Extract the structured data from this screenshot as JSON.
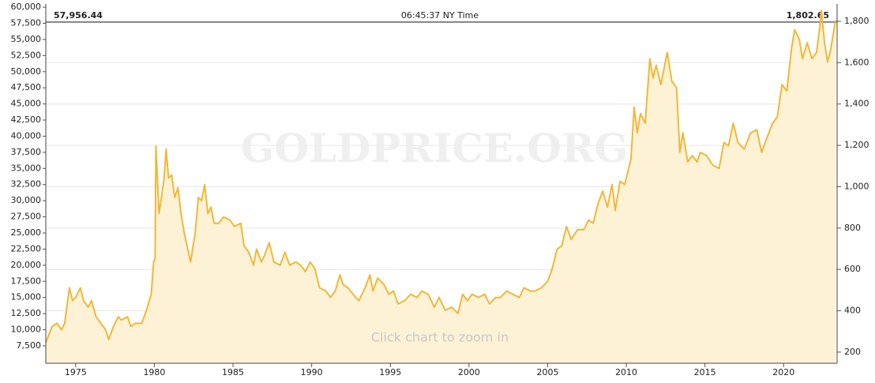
{
  "chart_data": {
    "type": "line",
    "annotations": [
      "57,956.44",
      "06:45:37 NY Time",
      "1,802.65"
    ],
    "watermark": "GOLDPRICE.ORG",
    "note": "Click chart to zoom in",
    "color": "#f0b838",
    "fill_color": "#fdf2d5",
    "grid": true,
    "xlim": [
      1973.1,
      2023.4
    ],
    "xticks": [
      1975,
      1980,
      1985,
      1990,
      1995,
      2000,
      2005,
      2010,
      2015,
      2020
    ],
    "ylim": [
      4800,
      60500
    ],
    "yticks": [
      {
        "value": 7500,
        "label": "7,500"
      },
      {
        "value": 10000,
        "label": "10,000"
      },
      {
        "value": 12500,
        "label": "12,500"
      },
      {
        "value": 15000,
        "label": "15,000"
      },
      {
        "value": 17500,
        "label": "17,500"
      },
      {
        "value": 20000,
        "label": "20,000"
      },
      {
        "value": 22500,
        "label": "22,500"
      },
      {
        "value": 25000,
        "label": "25,000"
      },
      {
        "value": 27500,
        "label": "27,500"
      },
      {
        "value": 30000,
        "label": "30,000"
      },
      {
        "value": 32500,
        "label": "32,500"
      },
      {
        "value": 35000,
        "label": "35,000"
      },
      {
        "value": 37500,
        "label": "37,500"
      },
      {
        "value": 40000,
        "label": "40,000"
      },
      {
        "value": 42500,
        "label": "42,500"
      },
      {
        "value": 45000,
        "label": "45,000"
      },
      {
        "value": 47500,
        "label": "47,500"
      },
      {
        "value": 50000,
        "label": "50,000"
      },
      {
        "value": 52500,
        "label": "52,500"
      },
      {
        "value": 55000,
        "label": "55,000"
      },
      {
        "value": 57500,
        "label": "57,500"
      },
      {
        "value": 60000,
        "label": "60,000"
      }
    ],
    "y2lim": [
      146,
      1884
    ],
    "y2ticks": [
      200,
      400,
      600,
      800,
      {
        "value": 1000,
        "label": "1,000"
      },
      {
        "value": 1200,
        "label": "1,200"
      },
      {
        "value": 1400,
        "label": "1,400"
      },
      {
        "value": 1600,
        "label": "1,600"
      },
      {
        "value": 1800,
        "label": "1,800"
      }
    ],
    "x": [
      1973.1,
      1973.5,
      1973.8,
      1974.1,
      1974.3,
      1974.6,
      1974.8,
      1975.0,
      1975.3,
      1975.5,
      1975.8,
      1976.0,
      1976.3,
      1976.6,
      1976.9,
      1977.1,
      1977.4,
      1977.7,
      1977.9,
      1978.3,
      1978.5,
      1978.8,
      1979.2,
      1979.5,
      1979.8,
      1979.95,
      1980.05,
      1980.1,
      1980.3,
      1980.6,
      1980.75,
      1980.9,
      1981.1,
      1981.3,
      1981.5,
      1981.7,
      1981.9,
      1982.3,
      1982.6,
      1982.8,
      1983.0,
      1983.2,
      1983.4,
      1983.6,
      1983.8,
      1984.1,
      1984.4,
      1984.8,
      1985.1,
      1985.5,
      1985.7,
      1986.0,
      1986.3,
      1986.5,
      1986.8,
      1987.0,
      1987.3,
      1987.6,
      1988.0,
      1988.3,
      1988.6,
      1989.0,
      1989.3,
      1989.6,
      1989.9,
      1990.2,
      1990.5,
      1990.9,
      1991.2,
      1991.5,
      1991.8,
      1992.0,
      1992.3,
      1992.8,
      1993.0,
      1993.4,
      1993.7,
      1993.9,
      1994.2,
      1994.6,
      1994.9,
      1995.2,
      1995.5,
      1995.9,
      1996.3,
      1996.7,
      1997.0,
      1997.4,
      1997.8,
      1998.1,
      1998.5,
      1998.9,
      1999.3,
      1999.6,
      1999.9,
      2000.2,
      2000.6,
      2001.0,
      2001.3,
      2001.7,
      2002.0,
      2002.4,
      2002.8,
      2003.2,
      2003.5,
      2003.9,
      2004.2,
      2004.6,
      2005.0,
      2005.3,
      2005.6,
      2005.9,
      2006.2,
      2006.5,
      2006.9,
      2007.3,
      2007.6,
      2007.9,
      2008.2,
      2008.5,
      2008.8,
      2009.1,
      2009.3,
      2009.6,
      2009.9,
      2010.3,
      2010.5,
      2010.7,
      2010.9,
      2011.2,
      2011.5,
      2011.7,
      2011.9,
      2012.2,
      2012.6,
      2012.9,
      2013.2,
      2013.4,
      2013.6,
      2013.9,
      2014.2,
      2014.5,
      2014.7,
      2015.1,
      2015.5,
      2015.9,
      2016.2,
      2016.5,
      2016.8,
      2017.1,
      2017.5,
      2017.9,
      2018.3,
      2018.6,
      2018.9,
      2019.3,
      2019.6,
      2019.9,
      2020.2,
      2020.5,
      2020.7,
      2021.0,
      2021.2,
      2021.5,
      2021.8,
      2022.1,
      2022.3,
      2022.4,
      2022.6,
      2022.8,
      2023.0,
      2023.3
    ],
    "values": [
      8000,
      10500,
      11000,
      10000,
      11000,
      16500,
      14500,
      15000,
      16500,
      14500,
      13500,
      14500,
      12000,
      11000,
      10000,
      8500,
      10500,
      12000,
      11500,
      12000,
      10500,
      11000,
      11000,
      13000,
      15500,
      20500,
      21000,
      38500,
      28000,
      33000,
      38000,
      33500,
      34000,
      30500,
      32000,
      28000,
      25000,
      20500,
      25000,
      30500,
      30000,
      32500,
      28000,
      29000,
      26500,
      26500,
      27500,
      27000,
      26000,
      26500,
      23000,
      22000,
      20000,
      22500,
      20500,
      21500,
      23500,
      20500,
      20000,
      22000,
      20000,
      20500,
      20000,
      19000,
      20500,
      19500,
      16500,
      16000,
      15000,
      16000,
      18500,
      17000,
      16500,
      15000,
      14500,
      16500,
      18500,
      16000,
      18000,
      17000,
      15500,
      16000,
      14000,
      14500,
      15500,
      15000,
      16000,
      15500,
      13500,
      15000,
      13000,
      13500,
      12500,
      15500,
      14500,
      15500,
      15000,
      15500,
      14000,
      15000,
      15000,
      16000,
      15500,
      15000,
      16500,
      16000,
      16000,
      16500,
      17500,
      19500,
      22500,
      23000,
      26000,
      24000,
      25500,
      25500,
      27000,
      26500,
      29500,
      31500,
      29000,
      32500,
      28500,
      33000,
      32500,
      36500,
      44500,
      40500,
      43500,
      42000,
      52000,
      49000,
      51000,
      48000,
      53000,
      48500,
      47500,
      37500,
      40500,
      36000,
      37000,
      36000,
      37500,
      37000,
      35500,
      35000,
      39000,
      38500,
      42000,
      39000,
      38000,
      40500,
      41000,
      37500,
      39500,
      42000,
      43000,
      48000,
      47000,
      53500,
      56500,
      55000,
      52000,
      54500,
      52000,
      53000,
      57000,
      59500,
      54500,
      51500,
      53500,
      57956
    ]
  }
}
